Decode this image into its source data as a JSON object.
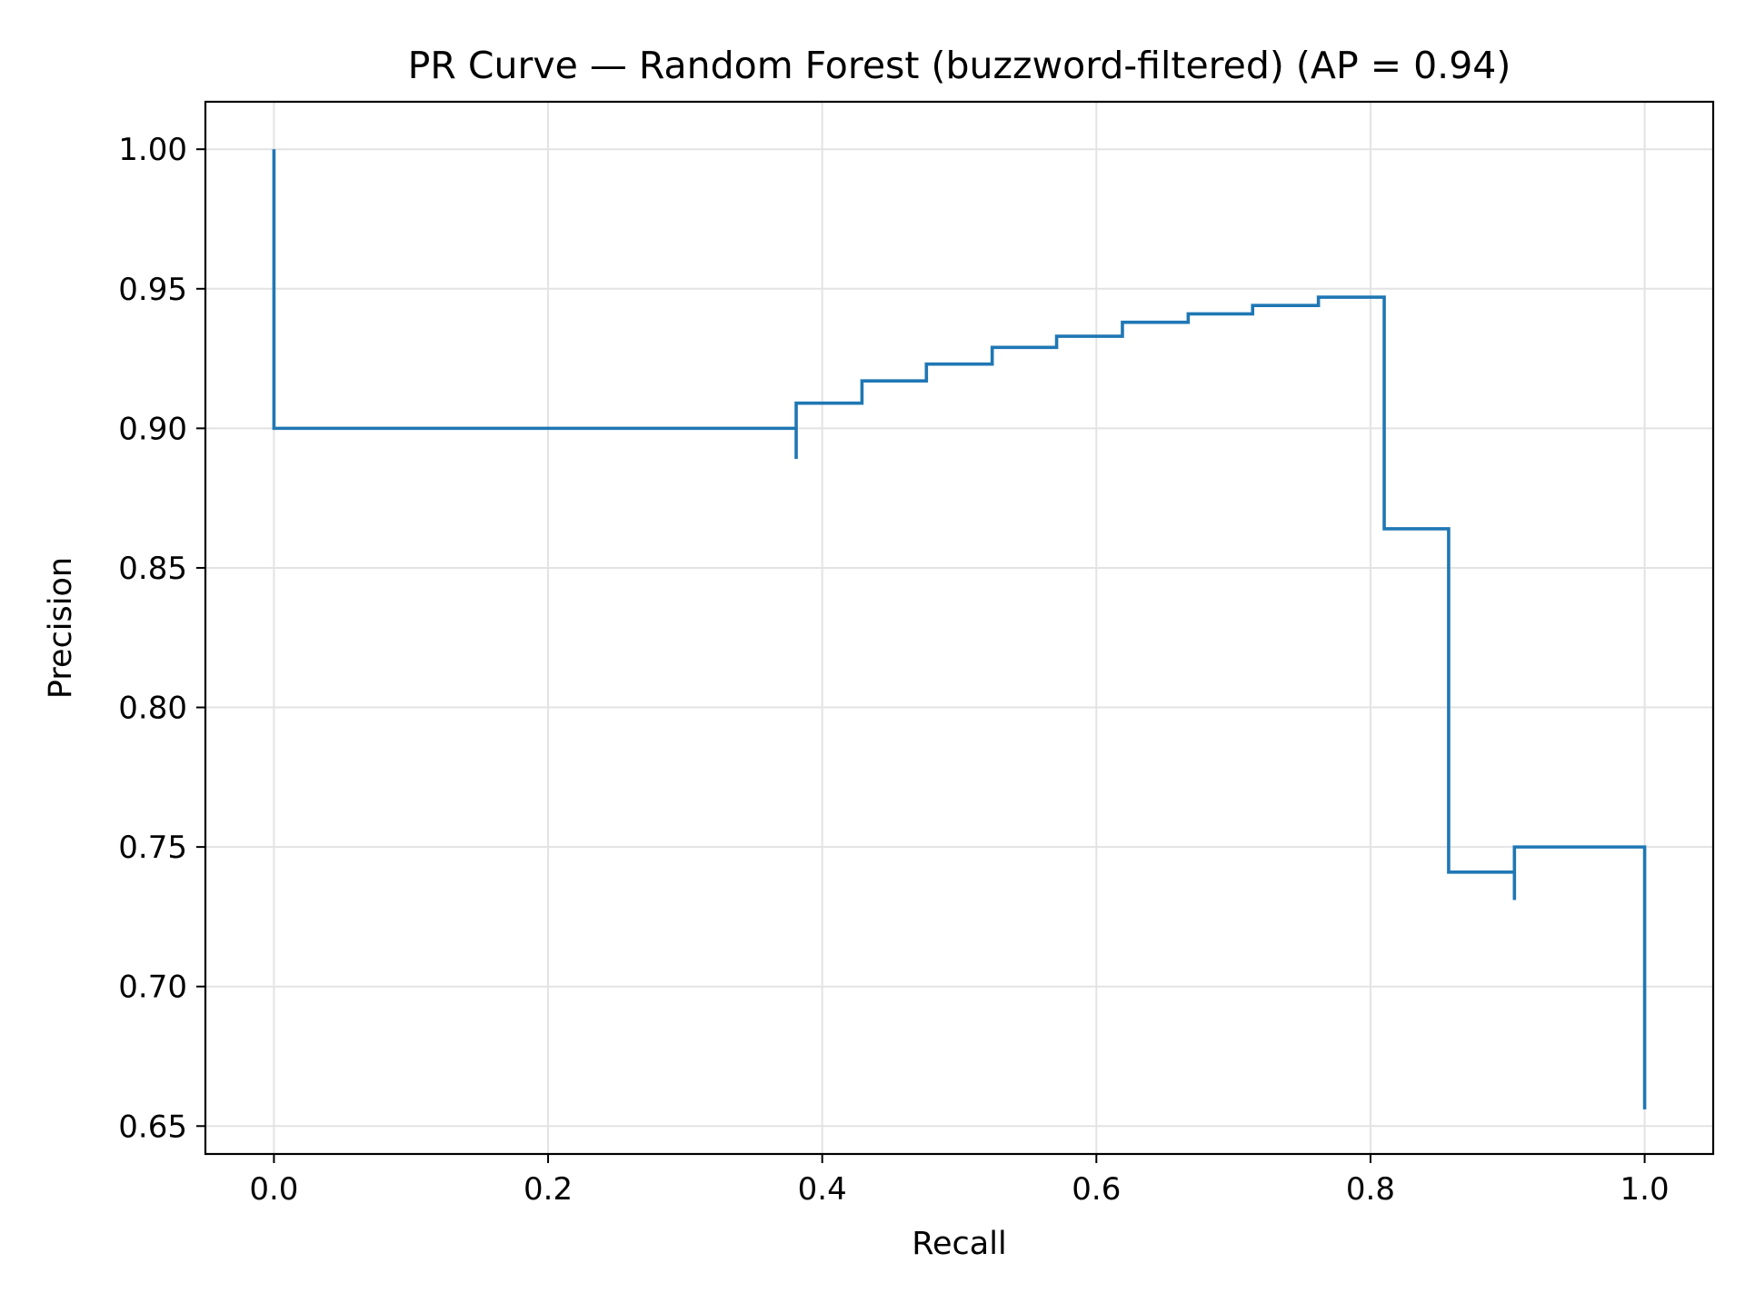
{
  "chart_data": {
    "type": "line",
    "title": "PR Curve — Random Forest (buzzword-filtered) (AP = 0.94)",
    "xlabel": "Recall",
    "ylabel": "Precision",
    "xlim": [
      -0.05,
      1.05
    ],
    "ylim": [
      0.64,
      1.017
    ],
    "xticks": [
      0.0,
      0.2,
      0.4,
      0.6,
      0.8,
      1.0
    ],
    "xtick_labels": [
      "0.0",
      "0.2",
      "0.4",
      "0.6",
      "0.8",
      "1.0"
    ],
    "yticks": [
      0.65,
      0.7,
      0.75,
      0.8,
      0.85,
      0.9,
      0.95,
      1.0
    ],
    "ytick_labels": [
      "0.65",
      "0.70",
      "0.75",
      "0.80",
      "0.85",
      "0.90",
      "0.95",
      "1.00"
    ],
    "grid": true,
    "legend": "none",
    "step": "post",
    "series": [
      {
        "color": "#1f77b4",
        "recall": [
          1.0,
          1.0,
          0.952,
          0.905,
          0.905,
          0.857,
          0.857,
          0.81,
          0.762,
          0.714,
          0.667,
          0.619,
          0.571,
          0.524,
          0.476,
          0.429,
          0.381,
          0.381,
          0.0
        ],
        "precision": [
          0.656,
          0.75,
          0.75,
          0.731,
          0.741,
          0.857,
          0.864,
          0.947,
          0.944,
          0.941,
          0.938,
          0.933,
          0.929,
          0.923,
          0.917,
          0.909,
          0.889,
          0.9,
          1.0
        ]
      }
    ]
  }
}
